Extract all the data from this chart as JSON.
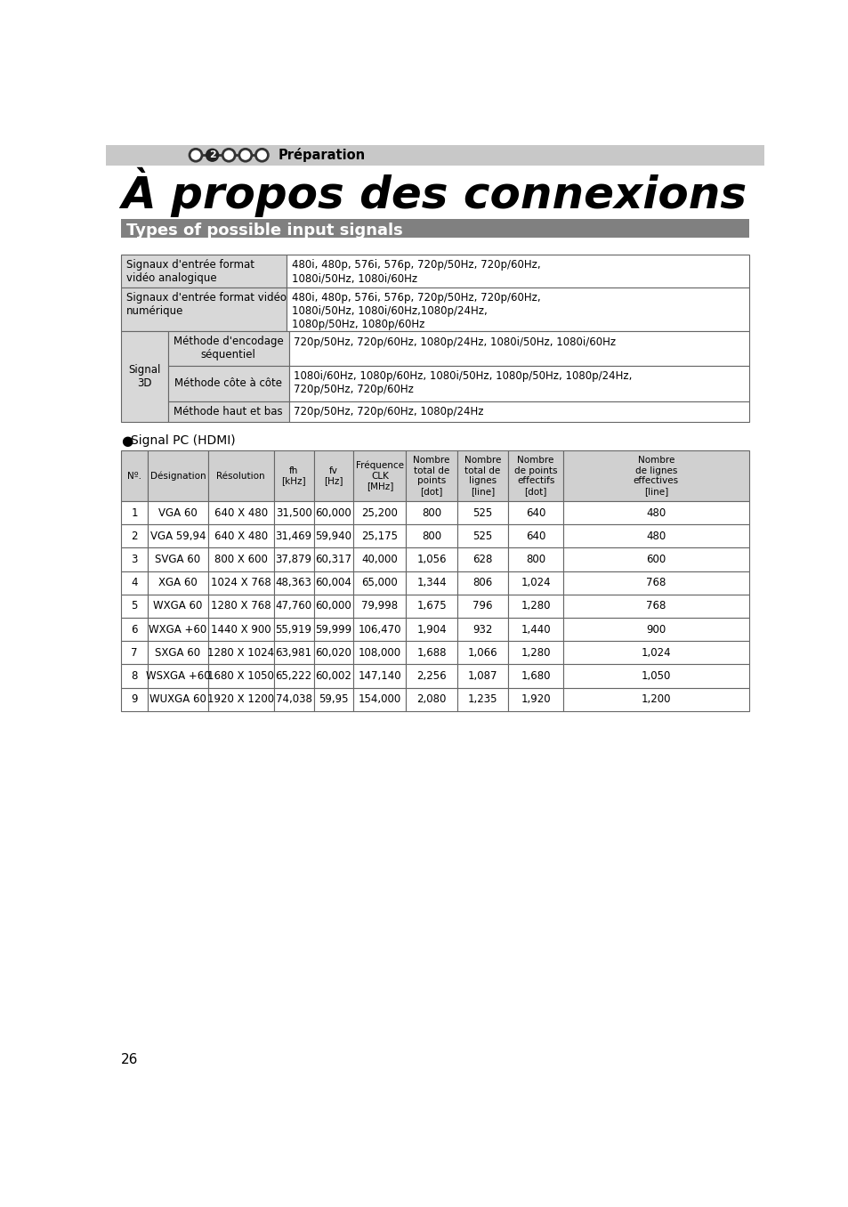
{
  "page_num": "26",
  "header_bg": "#c8c8c8",
  "header_text": "Préparation",
  "title": "À propos des connexions",
  "subtitle": "Types of possible input signals",
  "subtitle_bg": "#808080",
  "subtitle_fg": "#ffffff",
  "bg_color": "#ffffff",
  "text_color": "#000000",
  "table_line_color": "#666666",
  "signal_rows_simple": [
    {
      "col1": "Signaux d'entrée format\nvidéo analogique",
      "col2": "480i, 480p, 576i, 576p, 720p/50Hz, 720p/60Hz,\n1080i/50Hz, 1080i/60Hz"
    },
    {
      "col1": "Signaux d'entrée format vidéo\nnumérique",
      "col2": "480i, 480p, 576i, 576p, 720p/50Hz, 720p/60Hz,\n1080i/50Hz, 1080i/60Hz,1080p/24Hz,\n1080p/50Hz, 1080p/60Hz"
    }
  ],
  "signal_rows_3d": [
    {
      "sub_col1": "Méthode d'encodage\nséquentiel",
      "sub_col2": "720p/50Hz, 720p/60Hz, 1080p/24Hz, 1080i/50Hz, 1080i/60Hz"
    },
    {
      "sub_col1": "Méthode côte à côte",
      "sub_col2": "1080i/60Hz, 1080p/60Hz, 1080i/50Hz, 1080p/50Hz, 1080p/24Hz,\n720p/50Hz, 720p/60Hz"
    },
    {
      "sub_col1": "Méthode haut et bas",
      "sub_col2": "720p/50Hz, 720p/60Hz, 1080p/24Hz"
    }
  ],
  "pc_label": "Signal PC (HDMI)",
  "pc_table_headers": [
    "Nº.",
    "Désignation",
    "Résolution",
    "fh\n[kHz]",
    "fv\n[Hz]",
    "Fréquence\nCLK\n[MHz]",
    "Nombre\ntotal de\npoints\n[dot]",
    "Nombre\ntotal de\nlignes\n[line]",
    "Nombre\nde points\neffectifs\n[dot]",
    "Nombre\nde lignes\neffectives\n[line]"
  ],
  "pc_table_header_bg": "#d0d0d0",
  "pc_table_rows": [
    [
      "1",
      "VGA 60",
      "640 X 480",
      "31,500",
      "60,000",
      "25,200",
      "800",
      "525",
      "640",
      "480"
    ],
    [
      "2",
      "VGA 59,94",
      "640 X 480",
      "31,469",
      "59,940",
      "25,175",
      "800",
      "525",
      "640",
      "480"
    ],
    [
      "3",
      "SVGA 60",
      "800 X 600",
      "37,879",
      "60,317",
      "40,000",
      "1,056",
      "628",
      "800",
      "600"
    ],
    [
      "4",
      "XGA 60",
      "1024 X 768",
      "48,363",
      "60,004",
      "65,000",
      "1,344",
      "806",
      "1,024",
      "768"
    ],
    [
      "5",
      "WXGA 60",
      "1280 X 768",
      "47,760",
      "60,000",
      "79,998",
      "1,675",
      "796",
      "1,280",
      "768"
    ],
    [
      "6",
      "WXGA +60",
      "1440 X 900",
      "55,919",
      "59,999",
      "106,470",
      "1,904",
      "932",
      "1,440",
      "900"
    ],
    [
      "7",
      "SXGA 60",
      "1280 X 1024",
      "63,981",
      "60,020",
      "108,000",
      "1,688",
      "1,066",
      "1,280",
      "1,024"
    ],
    [
      "8",
      "WSXGA +60",
      "1680 X 1050",
      "65,222",
      "60,002",
      "147,140",
      "2,256",
      "1,087",
      "1,680",
      "1,050"
    ],
    [
      "9",
      "WUXGA 60",
      "1920 X 1200",
      "74,038",
      "59,95",
      "154,000",
      "2,080",
      "1,235",
      "1,920",
      "1,200"
    ]
  ]
}
